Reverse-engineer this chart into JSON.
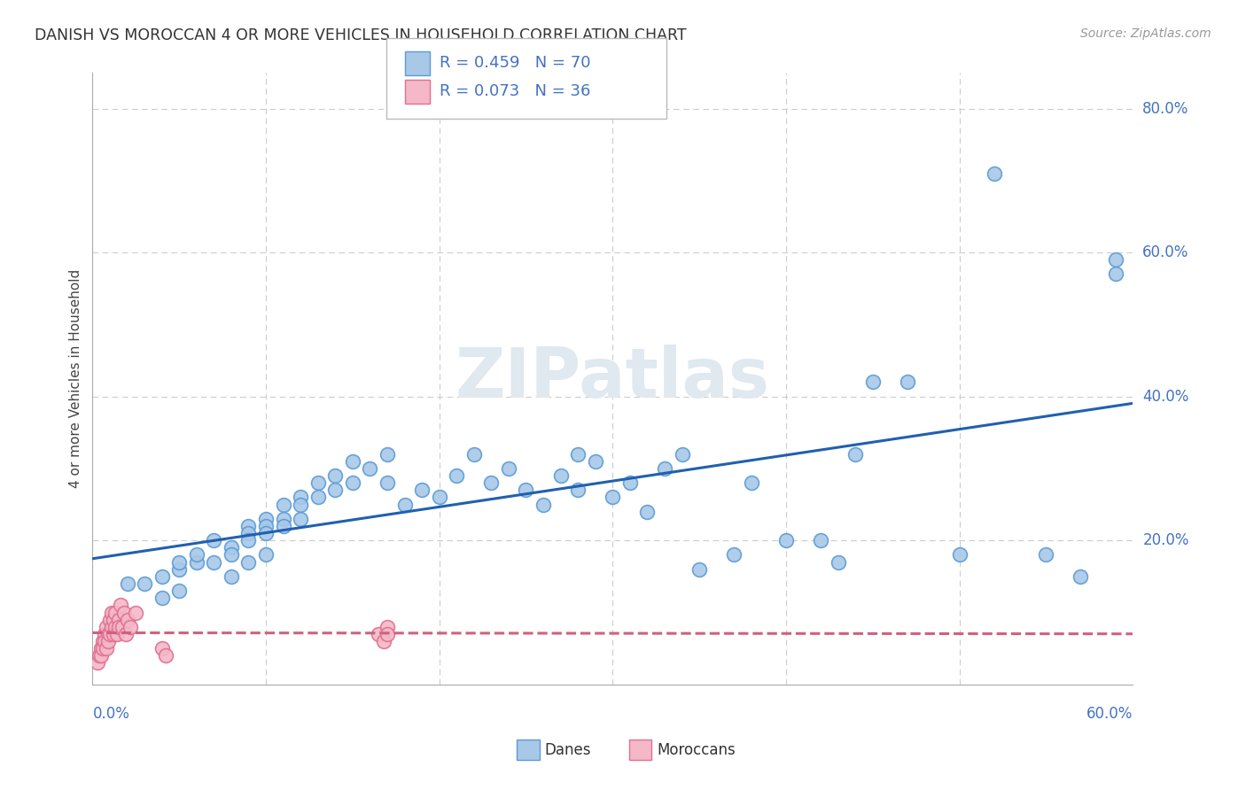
{
  "title": "DANISH VS MOROCCAN 4 OR MORE VEHICLES IN HOUSEHOLD CORRELATION CHART",
  "source": "Source: ZipAtlas.com",
  "ylabel": "4 or more Vehicles in Household",
  "xlim": [
    0.0,
    0.6
  ],
  "ylim": [
    0.0,
    0.85
  ],
  "danes_R": 0.459,
  "danes_N": 70,
  "moroccans_R": 0.073,
  "moroccans_N": 36,
  "danes_color": "#a8c8e8",
  "danes_edge_color": "#5b9bd5",
  "moroccans_color": "#f4b8c8",
  "moroccans_edge_color": "#e07090",
  "trendline_danes_color": "#2060b0",
  "trendline_moroccans_color": "#d06080",
  "background_color": "#ffffff",
  "watermark": "ZIPatlas",
  "danes_x": [
    0.02,
    0.03,
    0.04,
    0.04,
    0.05,
    0.05,
    0.05,
    0.06,
    0.06,
    0.07,
    0.07,
    0.08,
    0.08,
    0.08,
    0.09,
    0.09,
    0.09,
    0.09,
    0.1,
    0.1,
    0.1,
    0.1,
    0.11,
    0.11,
    0.11,
    0.12,
    0.12,
    0.12,
    0.13,
    0.13,
    0.14,
    0.14,
    0.15,
    0.15,
    0.16,
    0.17,
    0.17,
    0.18,
    0.19,
    0.2,
    0.21,
    0.22,
    0.23,
    0.24,
    0.25,
    0.26,
    0.27,
    0.28,
    0.28,
    0.29,
    0.3,
    0.31,
    0.32,
    0.33,
    0.34,
    0.35,
    0.37,
    0.38,
    0.4,
    0.42,
    0.43,
    0.44,
    0.45,
    0.47,
    0.5,
    0.52,
    0.55,
    0.57,
    0.59,
    0.59
  ],
  "danes_y": [
    0.14,
    0.14,
    0.15,
    0.12,
    0.16,
    0.13,
    0.17,
    0.17,
    0.18,
    0.2,
    0.17,
    0.19,
    0.18,
    0.15,
    0.22,
    0.21,
    0.2,
    0.17,
    0.23,
    0.22,
    0.21,
    0.18,
    0.25,
    0.23,
    0.22,
    0.26,
    0.25,
    0.23,
    0.28,
    0.26,
    0.29,
    0.27,
    0.31,
    0.28,
    0.3,
    0.32,
    0.28,
    0.25,
    0.27,
    0.26,
    0.29,
    0.32,
    0.28,
    0.3,
    0.27,
    0.25,
    0.29,
    0.27,
    0.32,
    0.31,
    0.26,
    0.28,
    0.24,
    0.3,
    0.32,
    0.16,
    0.18,
    0.28,
    0.2,
    0.2,
    0.17,
    0.32,
    0.42,
    0.42,
    0.18,
    0.71,
    0.18,
    0.15,
    0.57,
    0.59
  ],
  "moroccans_x": [
    0.003,
    0.004,
    0.005,
    0.005,
    0.006,
    0.006,
    0.007,
    0.007,
    0.008,
    0.008,
    0.009,
    0.009,
    0.01,
    0.01,
    0.011,
    0.011,
    0.012,
    0.012,
    0.013,
    0.013,
    0.014,
    0.015,
    0.015,
    0.016,
    0.017,
    0.018,
    0.019,
    0.02,
    0.022,
    0.025,
    0.04,
    0.042,
    0.165,
    0.168,
    0.17,
    0.17
  ],
  "moroccans_y": [
    0.03,
    0.04,
    0.05,
    0.04,
    0.06,
    0.05,
    0.07,
    0.06,
    0.05,
    0.08,
    0.07,
    0.06,
    0.09,
    0.07,
    0.08,
    0.1,
    0.07,
    0.09,
    0.08,
    0.1,
    0.07,
    0.09,
    0.08,
    0.11,
    0.08,
    0.1,
    0.07,
    0.09,
    0.08,
    0.1,
    0.05,
    0.04,
    0.07,
    0.06,
    0.08,
    0.07
  ]
}
